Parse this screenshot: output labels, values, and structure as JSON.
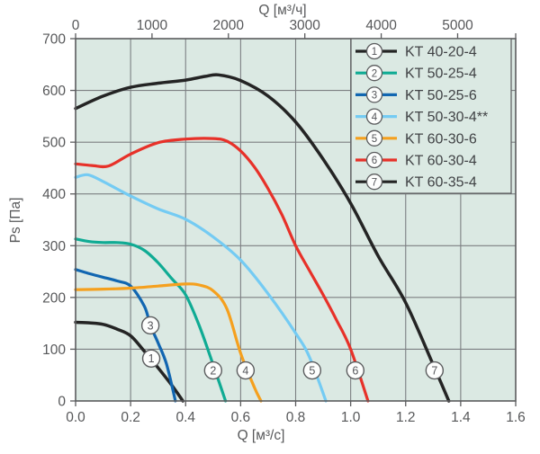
{
  "colors": {
    "plot_bg": "#dbe9e3",
    "grid": "#7c7f82",
    "axis": "#5b5c5e",
    "tick_text": "#57585a",
    "legend_text": "#404245",
    "legend_bg": "#dbe9e3",
    "marker_fill": "#fdfefd",
    "marker_stroke": "#5b5c5e",
    "marker_text": "#55565a"
  },
  "chart_data": {
    "type": "line",
    "grid": true,
    "legend_position": "top-right",
    "x_axis_top": {
      "label": "Q [м³/ч]",
      "unit": "м³/ч",
      "ticks": [
        0,
        1000,
        2000,
        3000,
        4000,
        5000
      ],
      "tick_labels": [
        "0",
        "1000",
        "2000",
        "3000",
        "4000",
        "5000"
      ]
    },
    "x_axis_bottom": {
      "label": "Q [м³/с]",
      "unit": "м³/с",
      "min": 0,
      "max": 1.6,
      "ticks": [
        0,
        0.2,
        0.4,
        0.6,
        0.8,
        1.0,
        1.2,
        1.4,
        1.6
      ],
      "tick_labels": [
        "0.0",
        "0.2",
        "0.4",
        "0.6",
        "0.8",
        "1.0",
        "1.2",
        "1.4",
        "1.6"
      ]
    },
    "y_axis": {
      "label": "Ps [Па]",
      "unit": "Па",
      "min": 0,
      "max": 700,
      "ticks": [
        0,
        100,
        200,
        300,
        400,
        500,
        600,
        700
      ],
      "tick_labels": [
        "0",
        "100",
        "200",
        "300",
        "400",
        "500",
        "600",
        "700"
      ]
    },
    "series": [
      {
        "num": "1",
        "name": "KT 40-20-4",
        "color": "#242424",
        "marker": [
          0.275,
          82
        ],
        "points": [
          [
            0,
            152
          ],
          [
            0.05,
            151
          ],
          [
            0.1,
            148
          ],
          [
            0.15,
            139
          ],
          [
            0.2,
            126
          ],
          [
            0.25,
            96
          ],
          [
            0.3,
            64
          ],
          [
            0.35,
            30
          ],
          [
            0.39,
            0
          ]
        ]
      },
      {
        "num": "2",
        "name": "KT 50-25-4",
        "color": "#10ab94",
        "marker": [
          0.5,
          59
        ],
        "points": [
          [
            0,
            313
          ],
          [
            0.05,
            308
          ],
          [
            0.1,
            306
          ],
          [
            0.15,
            306
          ],
          [
            0.2,
            303
          ],
          [
            0.25,
            291
          ],
          [
            0.3,
            267
          ],
          [
            0.35,
            236
          ],
          [
            0.4,
            205
          ],
          [
            0.45,
            145
          ],
          [
            0.5,
            70
          ],
          [
            0.545,
            0
          ]
        ]
      },
      {
        "num": "3",
        "name": "KT 50-25-6",
        "color": "#1166b1",
        "marker": [
          0.272,
          146
        ],
        "points": [
          [
            0,
            254
          ],
          [
            0.05,
            246
          ],
          [
            0.1,
            239
          ],
          [
            0.15,
            232
          ],
          [
            0.2,
            222
          ],
          [
            0.25,
            183
          ],
          [
            0.272,
            146
          ],
          [
            0.3,
            112
          ],
          [
            0.33,
            72
          ],
          [
            0.363,
            0
          ]
        ]
      },
      {
        "num": "4",
        "name": "KT 50-30-4**",
        "color": "#74cbf3",
        "marker": [
          0.618,
          59
        ],
        "points": [
          [
            0,
            432
          ],
          [
            0.045,
            437
          ],
          [
            0.1,
            424
          ],
          [
            0.15,
            410
          ],
          [
            0.2,
            396
          ],
          [
            0.3,
            371
          ],
          [
            0.4,
            351
          ],
          [
            0.5,
            317
          ],
          [
            0.6,
            272
          ],
          [
            0.7,
            207
          ],
          [
            0.8,
            131
          ],
          [
            0.85,
            85
          ],
          [
            0.91,
            0
          ]
        ]
      },
      {
        "num": "5",
        "name": "KT 60-30-6",
        "color": "#f5a01e",
        "marker": [
          0.86,
          59
        ],
        "points": [
          [
            0,
            215
          ],
          [
            0.1,
            216
          ],
          [
            0.2,
            218
          ],
          [
            0.3,
            222
          ],
          [
            0.4,
            226
          ],
          [
            0.45,
            224
          ],
          [
            0.5,
            213
          ],
          [
            0.55,
            178
          ],
          [
            0.6,
            92
          ],
          [
            0.65,
            26
          ],
          [
            0.674,
            0
          ]
        ]
      },
      {
        "num": "6",
        "name": "KT 60-30-4",
        "color": "#e73129",
        "marker": [
          1.017,
          59
        ],
        "points": [
          [
            0,
            458
          ],
          [
            0.06,
            455
          ],
          [
            0.12,
            454
          ],
          [
            0.2,
            477
          ],
          [
            0.3,
            499
          ],
          [
            0.4,
            506
          ],
          [
            0.5,
            507
          ],
          [
            0.55,
            502
          ],
          [
            0.6,
            483
          ],
          [
            0.65,
            452
          ],
          [
            0.7,
            410
          ],
          [
            0.75,
            360
          ],
          [
            0.8,
            300
          ],
          [
            0.85,
            252
          ],
          [
            0.9,
            205
          ],
          [
            0.95,
            155
          ],
          [
            1.0,
            100
          ],
          [
            1.063,
            0
          ]
        ]
      },
      {
        "num": "7",
        "name": "KT 60-35-4",
        "color": "#242424",
        "marker": [
          1.305,
          59
        ],
        "points": [
          [
            0,
            565
          ],
          [
            0.1,
            589
          ],
          [
            0.2,
            606
          ],
          [
            0.3,
            614
          ],
          [
            0.4,
            620
          ],
          [
            0.47,
            627
          ],
          [
            0.52,
            630
          ],
          [
            0.6,
            619
          ],
          [
            0.7,
            589
          ],
          [
            0.8,
            539
          ],
          [
            0.9,
            467
          ],
          [
            1.0,
            382
          ],
          [
            1.1,
            280
          ],
          [
            1.2,
            190
          ],
          [
            1.3,
            70
          ],
          [
            1.357,
            0
          ]
        ]
      }
    ]
  }
}
